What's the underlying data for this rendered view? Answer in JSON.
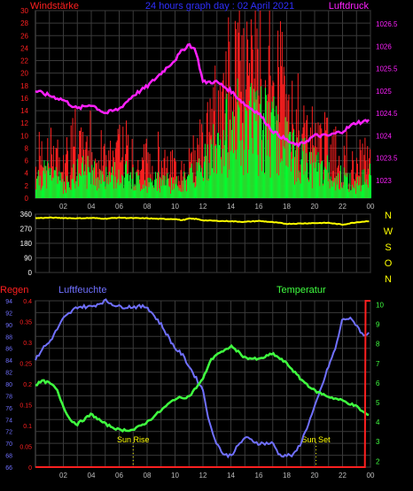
{
  "colors": {
    "background": "#000000",
    "grid": "#3a3a3a",
    "axis_x": "#bdbdbd",
    "wind_speed": "#ff2020",
    "wind_gust": "#00ff30",
    "pressure": "#ff20ff",
    "direction": "#ffff00",
    "rain": "#ff2020",
    "humidity": "#7070ff",
    "temperature": "#40ff40",
    "sun": "#ffff00",
    "title": "#3030ff",
    "direction_labels": "#ffff00"
  },
  "chart_data": [
    {
      "type": "line",
      "id": "wind-pressure",
      "title": "24 hours graph day : 02 April 2021",
      "left_label": "Windstärke",
      "right_label": "Luftdruck",
      "x_ticks": [
        "02",
        "04",
        "06",
        "08",
        "10",
        "12",
        "14",
        "16",
        "18",
        "20",
        "22",
        "00"
      ],
      "xlim": [
        0,
        24
      ],
      "y_left": {
        "min": 0,
        "max": 30,
        "ticks": [
          0,
          2,
          4,
          6,
          8,
          10,
          12,
          14,
          16,
          18,
          20,
          22,
          24,
          26,
          28,
          30
        ]
      },
      "y_right": {
        "min": 1022.6,
        "max": 1026.8,
        "ticks": [
          "1023",
          "1023.5",
          "1024",
          "1024.5",
          "1025",
          "1025.5",
          "1026",
          "1026.5"
        ]
      },
      "series": [
        {
          "key": "pressure",
          "style": "line",
          "x": [
            0,
            1,
            2,
            3,
            4,
            5,
            6,
            7,
            8,
            9,
            10,
            10.5,
            11,
            11.5,
            12,
            13,
            14,
            15,
            16,
            17,
            18,
            18.5,
            19,
            19.5,
            20,
            21,
            22,
            23,
            23.5,
            24
          ],
          "y": [
            1025.0,
            1024.9,
            1024.8,
            1024.6,
            1024.7,
            1024.5,
            1024.6,
            1024.9,
            1025.1,
            1025.4,
            1025.7,
            1025.9,
            1026.05,
            1025.9,
            1025.2,
            1025.2,
            1025.0,
            1024.7,
            1024.5,
            1024.1,
            1023.9,
            1023.8,
            1023.8,
            1023.9,
            1024.0,
            1024.0,
            1024.1,
            1024.3,
            1024.3,
            1024.4
          ]
        },
        {
          "key": "wind_speed",
          "style": "bars",
          "x": [
            0,
            1,
            2,
            3,
            4,
            5,
            6,
            7,
            8,
            9,
            10,
            11,
            12,
            13,
            14,
            15,
            16,
            17,
            18,
            19,
            20,
            21,
            22,
            23,
            24
          ],
          "y": [
            6,
            7,
            5,
            8,
            7,
            6,
            7,
            6,
            5,
            6,
            5,
            6,
            9,
            14,
            18,
            20,
            19,
            16,
            14,
            12,
            10,
            9,
            6,
            5,
            8
          ]
        },
        {
          "key": "wind_gust",
          "style": "bars",
          "x": [
            0,
            1,
            2,
            3,
            4,
            5,
            6,
            7,
            8,
            9,
            10,
            11,
            12,
            13,
            14,
            15,
            16,
            17,
            18,
            19,
            20,
            21,
            22,
            23,
            24
          ],
          "y": [
            3,
            4,
            2,
            4,
            4,
            3,
            4,
            3,
            2,
            3,
            2,
            3,
            5,
            8,
            11,
            12,
            11,
            10,
            8,
            6,
            5,
            4,
            3,
            2,
            4
          ]
        }
      ]
    },
    {
      "type": "line",
      "id": "direction",
      "xlim": [
        0,
        24
      ],
      "y_left": {
        "min": 0,
        "max": 360,
        "ticks": [
          0,
          90,
          180,
          270,
          360
        ]
      },
      "right_labels": [
        "N",
        "W",
        "S",
        "O",
        "N"
      ],
      "series": [
        {
          "key": "direction",
          "x": [
            0,
            1,
            2,
            3,
            4,
            5,
            6,
            7,
            8,
            9,
            10,
            10.5,
            11,
            11.5,
            12,
            13,
            14,
            15,
            16,
            17,
            18,
            19,
            20,
            21,
            22,
            23,
            24
          ],
          "y": [
            335,
            338,
            336,
            334,
            336,
            332,
            338,
            335,
            334,
            330,
            330,
            322,
            332,
            330,
            322,
            318,
            316,
            312,
            318,
            310,
            300,
            302,
            305,
            306,
            295,
            310,
            318
          ]
        }
      ]
    },
    {
      "type": "line",
      "id": "rain-humidity-temp",
      "labels": {
        "rain": "Regen",
        "humidity": "Luftfeuchte",
        "temperature": "Temperatur"
      },
      "xlim": [
        0,
        24
      ],
      "x_ticks": [
        "02",
        "04",
        "06",
        "08",
        "10",
        "12",
        "14",
        "16",
        "18",
        "20",
        "22",
        "00"
      ],
      "y_humidity": {
        "min": 66,
        "max": 94,
        "ticks": [
          66,
          68,
          70,
          72,
          74,
          76,
          78,
          80,
          82,
          84,
          86,
          88,
          90,
          92,
          94
        ]
      },
      "y_rain": {
        "min": 0,
        "max": 0.4,
        "ticks": [
          "0",
          "0.05",
          "0.1",
          "0.15",
          "0.2",
          "0.25",
          "0.3",
          "0.35",
          "0.4"
        ]
      },
      "y_temperature": {
        "min": 1.7,
        "max": 10.2,
        "ticks": [
          2,
          3,
          4,
          5,
          6,
          7,
          8,
          9,
          10
        ]
      },
      "annotations": [
        {
          "key": "sunrise",
          "label": "Sun Rise",
          "x": 7.0
        },
        {
          "key": "sunset",
          "label": "Sun Set",
          "x": 20.1
        }
      ],
      "series": [
        {
          "key": "humidity",
          "x": [
            0,
            0.5,
            1,
            2,
            2.5,
            3,
            4,
            5,
            6,
            7,
            8,
            9,
            10,
            10.5,
            11,
            12,
            12.5,
            13,
            13.5,
            14,
            15,
            16,
            17,
            17.5,
            18,
            18.5,
            19,
            20,
            21,
            21.5,
            22,
            22.5,
            23,
            23.5,
            24
          ],
          "y": [
            84,
            86,
            87,
            91,
            92,
            93,
            93,
            94,
            93,
            93,
            93,
            90,
            86,
            85,
            83,
            79,
            73,
            70,
            68,
            68,
            71,
            70,
            70,
            68,
            68,
            68,
            70,
            76,
            83,
            86,
            91,
            91,
            90,
            88,
            89
          ]
        },
        {
          "key": "temperature",
          "x": [
            0,
            0.5,
            1,
            1.5,
            2,
            2.5,
            3,
            4,
            5,
            6,
            7,
            8,
            9,
            10,
            11,
            12,
            12.5,
            13,
            13.5,
            14,
            15,
            16,
            17,
            18,
            19,
            20,
            21,
            22,
            23,
            23.5,
            24
          ],
          "y": [
            5.9,
            6.1,
            6.0,
            5.7,
            4.8,
            4.1,
            3.9,
            4.4,
            3.9,
            3.6,
            3.6,
            4.0,
            4.6,
            5.2,
            5.3,
            6.2,
            7.1,
            7.5,
            7.6,
            7.9,
            7.3,
            7.2,
            7.5,
            7.0,
            6.2,
            5.6,
            5.3,
            5.1,
            4.8,
            4.5,
            4.3
          ]
        },
        {
          "key": "rain",
          "x": [
            0,
            23.6,
            23.65,
            24
          ],
          "y": [
            0,
            0,
            0.4,
            0.4
          ]
        }
      ]
    }
  ]
}
